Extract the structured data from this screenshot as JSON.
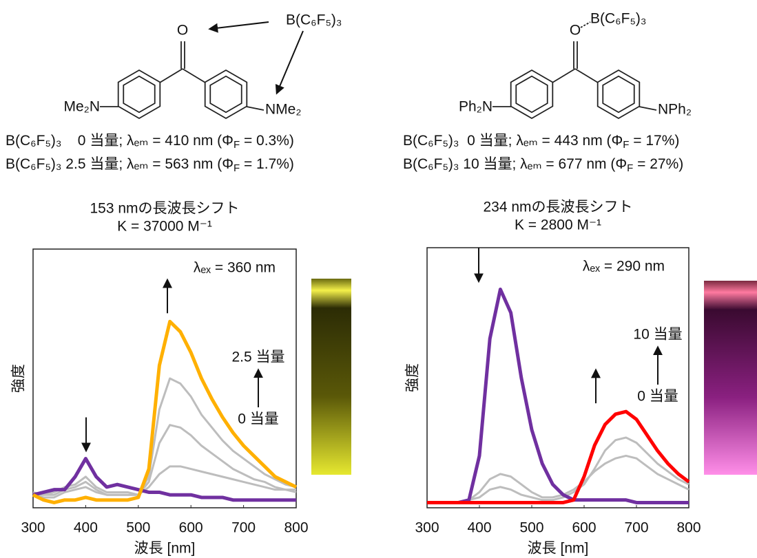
{
  "structures": [
    {
      "oxygen": "O",
      "lewis_acid": "B(C₆F₅)₃",
      "left_amine": "Me₂N",
      "right_amine": "NMe₂",
      "conditions": [
        {
          "pre": "B(C₆F₅)₃    0 当量; λₑₘ = 410 nm (Φ",
          "sub": "F",
          "post": " = 0.3%)"
        },
        {
          "pre": "B(C₆F₅)₃ 2.5 当量; λₑₘ = 563 nm (Φ",
          "sub": "F",
          "post": " = 1.7%)"
        }
      ]
    },
    {
      "oxygen": "O",
      "lewis_acid": "B(C₆F₅)₃",
      "left_amine": "Ph₂N",
      "right_amine": "NPh₂",
      "conditions": [
        {
          "pre": "B(C₆F₅)₃  0 当量; λₑₘ = 443 nm (Φ",
          "sub": "F",
          "post": " = 17%)"
        },
        {
          "pre": "B(C₆F₅)₃ 10 当量; λₑₘ = 677 nm (Φ",
          "sub": "F",
          "post": " = 27%)"
        }
      ]
    }
  ],
  "chart_data": [
    {
      "type": "line",
      "title": "153 nmの長波長シフト",
      "subtitle": "K = 37000 M⁻¹",
      "xlabel": "波長 [nm]",
      "ylabel": "強度",
      "annotation": "λₑₓ = 360 nm",
      "equiv_labels": [
        "2.5 当量",
        "0 当量"
      ],
      "x": [
        300,
        320,
        340,
        360,
        380,
        400,
        420,
        440,
        460,
        480,
        500,
        520,
        540,
        560,
        580,
        600,
        620,
        640,
        660,
        680,
        700,
        720,
        740,
        760,
        780,
        800
      ],
      "xlim": [
        300,
        800
      ],
      "xticks": [
        300,
        400,
        500,
        600,
        700,
        800
      ],
      "ylim": [
        0,
        1
      ],
      "series": [
        {
          "color": "#bdbdbd",
          "values": [
            0.06,
            0.05,
            0.06,
            0.08,
            0.09,
            0.12,
            0.08,
            0.06,
            0.06,
            0.06,
            0.05,
            0.08,
            0.13,
            0.16,
            0.16,
            0.15,
            0.14,
            0.13,
            0.12,
            0.11,
            0.1,
            0.09,
            0.08,
            0.07,
            0.07,
            0.06
          ]
        },
        {
          "color": "#bdbdbd",
          "values": [
            0.05,
            0.05,
            0.05,
            0.07,
            0.08,
            0.1,
            0.07,
            0.05,
            0.05,
            0.05,
            0.05,
            0.1,
            0.25,
            0.32,
            0.31,
            0.28,
            0.24,
            0.21,
            0.18,
            0.15,
            0.13,
            0.11,
            0.1,
            0.08,
            0.07,
            0.07
          ]
        },
        {
          "color": "#bdbdbd",
          "values": [
            0.05,
            0.04,
            0.04,
            0.06,
            0.07,
            0.08,
            0.06,
            0.05,
            0.05,
            0.05,
            0.05,
            0.12,
            0.38,
            0.5,
            0.48,
            0.43,
            0.36,
            0.31,
            0.26,
            0.22,
            0.19,
            0.16,
            0.13,
            0.11,
            0.09,
            0.08
          ]
        },
        {
          "color": "#7030a0",
          "values": [
            0.05,
            0.06,
            0.07,
            0.07,
            0.12,
            0.19,
            0.12,
            0.08,
            0.09,
            0.08,
            0.07,
            0.06,
            0.06,
            0.05,
            0.05,
            0.05,
            0.04,
            0.04,
            0.04,
            0.03,
            0.03,
            0.03,
            0.03,
            0.03,
            0.03,
            0.03
          ]
        },
        {
          "color": "#ffb000",
          "values": [
            0.05,
            0.03,
            0.02,
            0.03,
            0.03,
            0.04,
            0.03,
            0.03,
            0.03,
            0.03,
            0.04,
            0.15,
            0.55,
            0.72,
            0.68,
            0.6,
            0.5,
            0.42,
            0.35,
            0.29,
            0.24,
            0.2,
            0.16,
            0.12,
            0.1,
            0.08
          ]
        }
      ]
    },
    {
      "type": "line",
      "title": "234 nmの長波長シフト",
      "subtitle": "K = 2800 M⁻¹",
      "xlabel": "波長 [nm]",
      "ylabel": "強度",
      "annotation": "λₑₓ = 290 nm",
      "equiv_labels": [
        "10 当量",
        "0 当量"
      ],
      "x": [
        300,
        320,
        340,
        360,
        380,
        400,
        420,
        440,
        460,
        480,
        500,
        520,
        540,
        560,
        580,
        600,
        620,
        640,
        660,
        680,
        700,
        720,
        740,
        760,
        780,
        800
      ],
      "xlim": [
        300,
        800
      ],
      "xticks": [
        300,
        400,
        500,
        600,
        700,
        800
      ],
      "ylim": [
        0,
        1
      ],
      "series": [
        {
          "color": "#bdbdbd",
          "values": [
            0.02,
            0.02,
            0.02,
            0.02,
            0.03,
            0.06,
            0.11,
            0.13,
            0.12,
            0.09,
            0.06,
            0.04,
            0.04,
            0.05,
            0.07,
            0.1,
            0.14,
            0.17,
            0.19,
            0.2,
            0.19,
            0.16,
            0.13,
            0.11,
            0.09,
            0.07
          ]
        },
        {
          "color": "#bdbdbd",
          "values": [
            0.02,
            0.02,
            0.02,
            0.02,
            0.03,
            0.04,
            0.07,
            0.08,
            0.07,
            0.05,
            0.04,
            0.03,
            0.03,
            0.04,
            0.06,
            0.09,
            0.15,
            0.22,
            0.26,
            0.27,
            0.25,
            0.21,
            0.17,
            0.14,
            0.11,
            0.09
          ]
        },
        {
          "color": "#7030a0",
          "values": [
            0.02,
            0.02,
            0.02,
            0.02,
            0.03,
            0.2,
            0.65,
            0.84,
            0.75,
            0.5,
            0.3,
            0.17,
            0.09,
            0.05,
            0.03,
            0.03,
            0.03,
            0.03,
            0.03,
            0.03,
            0.02,
            0.02,
            0.02,
            0.02,
            0.02,
            0.02
          ]
        },
        {
          "color": "#ff0000",
          "values": [
            0.02,
            0.02,
            0.02,
            0.02,
            0.02,
            0.02,
            0.02,
            0.02,
            0.02,
            0.02,
            0.02,
            0.02,
            0.02,
            0.02,
            0.03,
            0.12,
            0.24,
            0.32,
            0.36,
            0.37,
            0.34,
            0.28,
            0.22,
            0.17,
            0.13,
            0.1
          ]
        }
      ]
    }
  ]
}
